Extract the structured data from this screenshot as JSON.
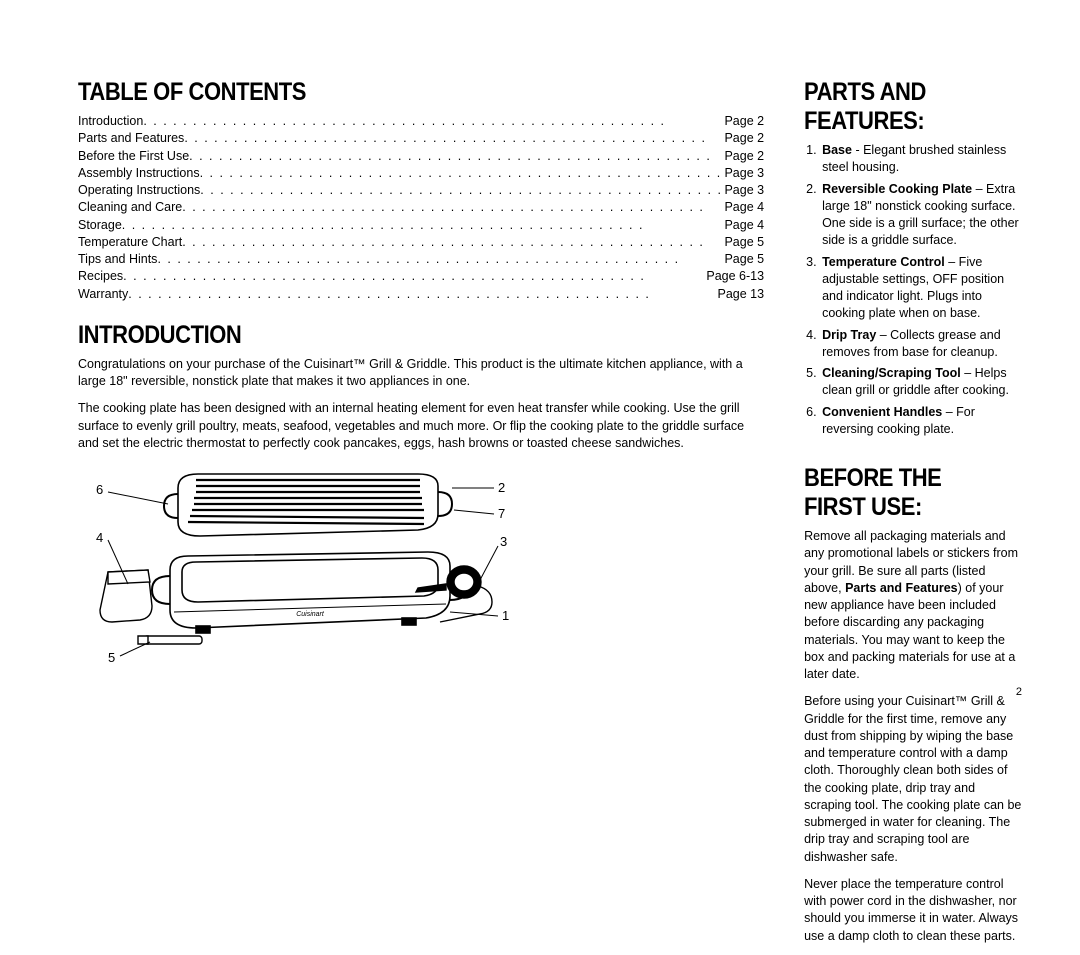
{
  "page_number": "2",
  "left": {
    "toc_heading": "TABLE OF CONTENTS",
    "toc": [
      {
        "label": "Introduction",
        "page": "Page 2"
      },
      {
        "label": "Parts and Features",
        "page": "Page 2"
      },
      {
        "label": "Before the First Use",
        "page": "Page 2"
      },
      {
        "label": "Assembly Instructions",
        "page": "Page 3"
      },
      {
        "label": "Operating Instructions",
        "page": "Page 3"
      },
      {
        "label": "Cleaning and Care",
        "page": "Page 4"
      },
      {
        "label": "Storage",
        "page": "Page 4"
      },
      {
        "label": "Temperature Chart",
        "page": "Page 5"
      },
      {
        "label": "Tips and Hints",
        "page": "Page 5"
      },
      {
        "label": "Recipes",
        "page": "Page 6-13"
      },
      {
        "label": "Warranty",
        "page": "Page 13"
      }
    ],
    "intro_heading": "INTRODUCTION",
    "intro_p1": "Congratulations on your purchase of the Cuisinart™ Grill & Griddle. This product is the ultimate kitchen appliance, with a large 18\" reversible, nonstick plate that makes it two appliances in one.",
    "intro_p2": "The cooking plate has been designed with an internal heating element for even heat transfer while cooking. Use the grill surface to evenly grill poultry, meats, seafood, vegetables and much more. Or flip the cooking plate to the griddle surface and set the electric thermostat to perfectly cook pancakes, eggs, hash browns or toasted cheese sandwiches.",
    "callouts": {
      "c1": "1",
      "c2": "2",
      "c3": "3",
      "c4": "4",
      "c5": "5",
      "c6": "6",
      "c7": "7"
    }
  },
  "right": {
    "parts_heading": "PARTS AND FEATURES:",
    "features": [
      {
        "name": "Base",
        "desc": " - Elegant brushed stainless steel housing."
      },
      {
        "name": "Reversible Cooking Plate",
        "desc": " – Extra large 18\" nonstick cooking surface. One side is a grill surface; the other side is a griddle surface."
      },
      {
        "name": "Temperature Control",
        "desc": " – Five adjustable settings, OFF position and indicator light. Plugs into cooking plate when on base."
      },
      {
        "name": "Drip Tray",
        "desc": " – Collects grease and removes from base for cleanup."
      },
      {
        "name": "Cleaning/Scraping Tool",
        "desc": " – Helps clean grill or griddle after cooking."
      },
      {
        "name": "Convenient Handles",
        "desc": " – For reversing cooking plate."
      }
    ],
    "before_heading": "BEFORE THE FIRST USE:",
    "before_p1a": "Remove all packaging materials and any promotional labels or stickers from your grill. Be sure all parts (listed above, ",
    "before_p1b": "Parts and Features",
    "before_p1c": ") of your new appliance have been included before discarding any packaging materials. You may want to keep the box and packing materials for use at a later date.",
    "before_p2": "Before using your Cuisinart™ Grill & Griddle for the first time, remove any dust from shipping by wiping the base and temperature control with a damp cloth. Thoroughly clean both sides of the cooking plate, drip tray and scraping tool. The cooking plate can be submerged in water for cleaning. The drip tray and scraping tool are dishwasher safe.",
    "before_p3": "Never place the temperature control with power cord in the dishwasher, nor should you immerse it in water. Always use a damp cloth to clean these parts."
  }
}
